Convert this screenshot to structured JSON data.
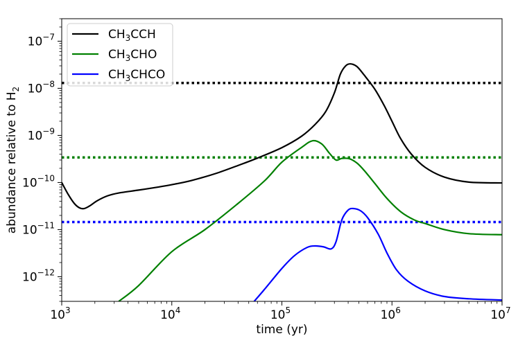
{
  "chart_data": {
    "type": "line",
    "xlabel": "time (yr)",
    "ylabel": "abundance relative to H",
    "ylabel_sub": "2",
    "xscale": "log",
    "yscale": "log",
    "xlim": [
      1000,
      10000000
    ],
    "ylim": [
      3e-13,
      3e-07
    ],
    "grid": false,
    "legend_position": "top-left",
    "x_ticks": [
      {
        "base": "10",
        "exp": "3",
        "value": 1000
      },
      {
        "base": "10",
        "exp": "4",
        "value": 10000
      },
      {
        "base": "10",
        "exp": "5",
        "value": 100000
      },
      {
        "base": "10",
        "exp": "6",
        "value": 1000000
      },
      {
        "base": "10",
        "exp": "7",
        "value": 10000000
      }
    ],
    "y_ticks": [
      {
        "base": "10",
        "exp": "−12",
        "value": 1e-12
      },
      {
        "base": "10",
        "exp": "−11",
        "value": 1e-11
      },
      {
        "base": "10",
        "exp": "−10",
        "value": 1e-10
      },
      {
        "base": "10",
        "exp": "−9",
        "value": 1e-09
      },
      {
        "base": "10",
        "exp": "−8",
        "value": 1e-08
      },
      {
        "base": "10",
        "exp": "−7",
        "value": 1e-07
      }
    ],
    "series": [
      {
        "name_parts": [
          "CH",
          "3",
          "CCH"
        ],
        "color": "#000000",
        "reference_level": 1.3e-08,
        "points": [
          [
            1000,
            1e-10
          ],
          [
            1150,
            5.5e-11
          ],
          [
            1300,
            3.6e-11
          ],
          [
            1450,
            2.9e-11
          ],
          [
            1600,
            2.8e-11
          ],
          [
            1800,
            3.2e-11
          ],
          [
            2100,
            4.1e-11
          ],
          [
            2600,
            5.2e-11
          ],
          [
            3300,
            6e-11
          ],
          [
            5000,
            6.9e-11
          ],
          [
            7500,
            8e-11
          ],
          [
            10000,
            9e-11
          ],
          [
            15000,
            1.1e-10
          ],
          [
            25000,
            1.55e-10
          ],
          [
            40000,
            2.3e-10
          ],
          [
            60000,
            3.3e-10
          ],
          [
            100000,
            5.5e-10
          ],
          [
            150000,
            9.5e-10
          ],
          [
            200000,
            1.7e-09
          ],
          [
            250000,
            3.2e-09
          ],
          [
            300000,
            8e-09
          ],
          [
            340000,
            2e-08
          ],
          [
            380000,
            3e-08
          ],
          [
            420000,
            3.3e-08
          ],
          [
            480000,
            2.9e-08
          ],
          [
            560000,
            1.9e-08
          ],
          [
            700000,
            9.5e-09
          ],
          [
            850000,
            4.3e-09
          ],
          [
            1000000,
            2e-09
          ],
          [
            1200000,
            8.5e-10
          ],
          [
            1500000,
            4e-10
          ],
          [
            2000000,
            2.1e-10
          ],
          [
            3000000,
            1.3e-10
          ],
          [
            5000000,
            1.02e-10
          ],
          [
            10000000,
            9.8e-11
          ]
        ]
      },
      {
        "name_parts": [
          "CH",
          "3",
          "CHO"
        ],
        "color": "#008000",
        "reference_level": 3.4e-10,
        "points": [
          [
            3300,
            3e-13
          ],
          [
            5000,
            6.5e-13
          ],
          [
            10000,
            3.4e-12
          ],
          [
            20000,
            1e-11
          ],
          [
            40000,
            3.6e-11
          ],
          [
            70000,
            1.1e-10
          ],
          [
            100000,
            2.7e-10
          ],
          [
            150000,
            5.5e-10
          ],
          [
            190000,
            7.7e-10
          ],
          [
            230000,
            6.6e-10
          ],
          [
            270000,
            4.2e-10
          ],
          [
            310000,
            3e-10
          ],
          [
            350000,
            3.25e-10
          ],
          [
            410000,
            3.2e-10
          ],
          [
            480000,
            2.6e-10
          ],
          [
            560000,
            1.8e-10
          ],
          [
            700000,
            9.5e-11
          ],
          [
            900000,
            4.6e-11
          ],
          [
            1200000,
            2.4e-11
          ],
          [
            1600000,
            1.6e-11
          ],
          [
            2000000,
            1.35e-11
          ],
          [
            3000000,
            1e-11
          ],
          [
            5000000,
            8.2e-12
          ],
          [
            10000000,
            7.8e-12
          ]
        ]
      },
      {
        "name_parts": [
          "CH",
          "3",
          "CHCO"
        ],
        "color": "#0000ff",
        "reference_level": 1.45e-11,
        "points": [
          [
            56000,
            3e-13
          ],
          [
            70000,
            5.5e-13
          ],
          [
            100000,
            1.5e-12
          ],
          [
            130000,
            2.8e-12
          ],
          [
            170000,
            4.2e-12
          ],
          [
            200000,
            4.5e-12
          ],
          [
            240000,
            4.3e-12
          ],
          [
            280000,
            3.9e-12
          ],
          [
            310000,
            5.5e-12
          ],
          [
            350000,
            1.6e-11
          ],
          [
            400000,
            2.6e-11
          ],
          [
            450000,
            2.8e-11
          ],
          [
            520000,
            2.5e-11
          ],
          [
            600000,
            1.8e-11
          ],
          [
            750000,
            8e-12
          ],
          [
            900000,
            3.2e-12
          ],
          [
            1100000,
            1.4e-12
          ],
          [
            1400000,
            8e-13
          ],
          [
            2000000,
            5e-13
          ],
          [
            3000000,
            3.8e-13
          ],
          [
            5000000,
            3.4e-13
          ],
          [
            10000000,
            3.2e-13
          ]
        ]
      }
    ]
  }
}
